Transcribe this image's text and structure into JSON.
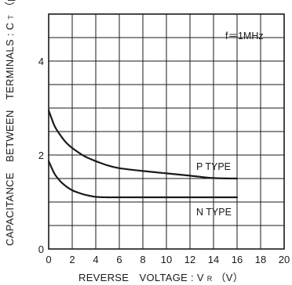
{
  "chart_data": {
    "type": "line",
    "title": "",
    "xlabel": "REVERSE　VOLTAGE : V",
    "xlabel_sub": "R",
    "xlabel_unit": "（V）",
    "ylabel": "CAPACITANCE　BETWEEN　TERMINALS : C",
    "ylabel_sub": "T",
    "ylabel_unit": "（pF）",
    "xlim": [
      0,
      20
    ],
    "ylim": [
      0,
      5
    ],
    "x_ticks": [
      0,
      2,
      4,
      6,
      8,
      10,
      12,
      14,
      16,
      18,
      20
    ],
    "x_tick_labels": [
      "0",
      "2",
      "4",
      "6",
      "8",
      "10",
      "12",
      "14",
      "16",
      "18",
      "20"
    ],
    "y_ticks": [
      0,
      2,
      4
    ],
    "y_tick_labels": [
      "0",
      "2",
      "4"
    ],
    "grid": true,
    "annotation": "f＝1MHz",
    "series": [
      {
        "name": "P TYPE",
        "x": [
          0,
          0.5,
          1,
          1.5,
          2,
          3,
          4,
          5,
          6,
          8,
          10,
          12,
          14,
          16
        ],
        "y": [
          2.95,
          2.62,
          2.42,
          2.26,
          2.15,
          1.98,
          1.87,
          1.78,
          1.72,
          1.66,
          1.61,
          1.56,
          1.51,
          1.5
        ]
      },
      {
        "name": "N TYPE",
        "x": [
          0,
          0.5,
          1,
          1.5,
          2,
          2.5,
          3,
          4,
          5,
          6,
          8,
          10,
          12,
          14,
          16
        ],
        "y": [
          1.87,
          1.6,
          1.44,
          1.33,
          1.25,
          1.2,
          1.16,
          1.11,
          1.1,
          1.1,
          1.1,
          1.1,
          1.1,
          1.1,
          1.1
        ]
      }
    ]
  }
}
